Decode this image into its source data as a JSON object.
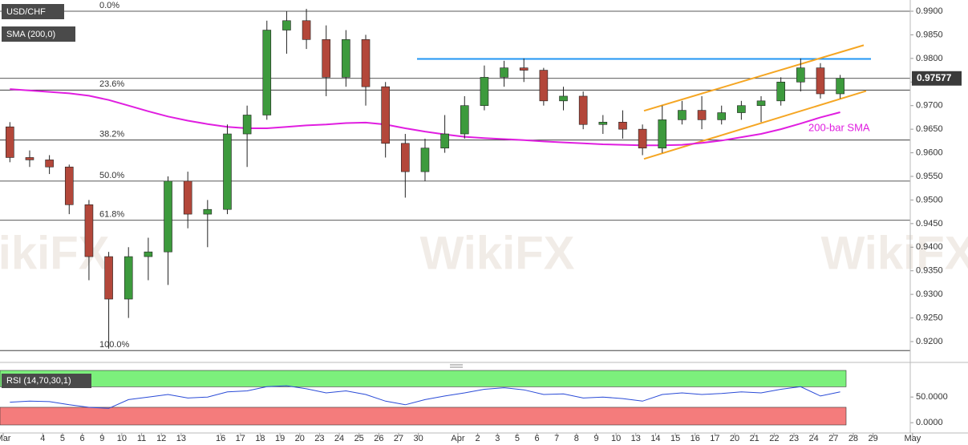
{
  "chart_data": {
    "type": "candlestick",
    "symbol": "USD/CHF",
    "indicator": "SMA (200,0)",
    "categories": [
      "Mar",
      null,
      "4",
      "5",
      "6",
      "9",
      "10",
      "11",
      "12",
      "13",
      null,
      "16",
      "17",
      "18",
      "19",
      "20",
      "23",
      "24",
      "25",
      "26",
      "27",
      "30",
      null,
      "Apr",
      "2",
      "3",
      "5",
      "6",
      "7",
      "8",
      "9",
      "10",
      "13",
      "14",
      "15",
      "16",
      "17",
      "20",
      "21",
      "22",
      "23",
      "24",
      "27",
      "28",
      "29",
      null,
      "May"
    ],
    "candles": [
      [
        0.9655,
        0.9665,
        0.958,
        0.959
      ],
      [
        0.959,
        0.9605,
        0.957,
        0.9585
      ],
      [
        0.9585,
        0.9595,
        0.9555,
        0.957
      ],
      [
        0.957,
        0.9575,
        0.947,
        0.949
      ],
      [
        0.949,
        0.95,
        0.933,
        0.938
      ],
      [
        0.938,
        0.939,
        0.9185,
        0.929
      ],
      [
        0.929,
        0.94,
        0.925,
        0.938
      ],
      [
        0.938,
        0.942,
        0.933,
        0.939
      ],
      [
        0.939,
        0.955,
        0.932,
        0.954
      ],
      [
        0.954,
        0.956,
        0.944,
        0.947
      ],
      [
        0.947,
        0.95,
        0.94,
        0.948
      ],
      [
        0.948,
        0.966,
        0.947,
        0.964
      ],
      [
        0.964,
        0.97,
        0.957,
        0.968
      ],
      [
        0.968,
        0.988,
        0.967,
        0.986
      ],
      [
        0.986,
        0.99,
        0.981,
        0.988
      ],
      [
        0.988,
        0.9905,
        0.982,
        0.984
      ],
      [
        0.984,
        0.987,
        0.972,
        0.976
      ],
      [
        0.976,
        0.986,
        0.974,
        0.984
      ],
      [
        0.984,
        0.985,
        0.97,
        0.974
      ],
      [
        0.974,
        0.975,
        0.959,
        0.962
      ],
      [
        0.962,
        0.964,
        0.9505,
        0.956
      ],
      [
        0.956,
        0.963,
        0.954,
        0.961
      ],
      [
        0.961,
        0.968,
        0.96,
        0.964
      ],
      [
        0.964,
        0.972,
        0.963,
        0.97
      ],
      [
        0.97,
        0.9785,
        0.969,
        0.976
      ],
      [
        0.976,
        0.9795,
        0.974,
        0.978
      ],
      [
        0.978,
        0.98,
        0.975,
        0.9775
      ],
      [
        0.9775,
        0.978,
        0.97,
        0.971
      ],
      [
        0.971,
        0.974,
        0.969,
        0.972
      ],
      [
        0.972,
        0.973,
        0.965,
        0.966
      ],
      [
        0.966,
        0.968,
        0.964,
        0.9665
      ],
      [
        0.9665,
        0.969,
        0.963,
        0.965
      ],
      [
        0.965,
        0.966,
        0.9595,
        0.961
      ],
      [
        0.961,
        0.97,
        0.96,
        0.967
      ],
      [
        0.967,
        0.971,
        0.966,
        0.969
      ],
      [
        0.969,
        0.972,
        0.965,
        0.967
      ],
      [
        0.967,
        0.97,
        0.966,
        0.9685
      ],
      [
        0.9685,
        0.971,
        0.967,
        0.97
      ],
      [
        0.97,
        0.972,
        0.9665,
        0.971
      ],
      [
        0.971,
        0.976,
        0.97,
        0.975
      ],
      [
        0.975,
        0.98,
        0.973,
        0.978
      ],
      [
        0.978,
        0.979,
        0.9715,
        0.9725
      ],
      [
        0.9725,
        0.9765,
        0.9715,
        0.9758
      ],
      null,
      null,
      null,
      null
    ],
    "up_color": "#3d9a3d",
    "down_color": "#b3473a",
    "sma": {
      "name": "200-bar SMA",
      "color": "#e01ee0",
      "values": [
        0.9735,
        0.9732,
        0.9729,
        0.9726,
        0.9721,
        0.9712,
        0.97,
        0.9688,
        0.9677,
        0.9668,
        0.9661,
        0.9655,
        0.9652,
        0.9652,
        0.9655,
        0.9658,
        0.966,
        0.9663,
        0.9664,
        0.966,
        0.9652,
        0.9645,
        0.9639,
        0.9634,
        0.9631,
        0.9629,
        0.9627,
        0.9624,
        0.9622,
        0.962,
        0.9618,
        0.9617,
        0.9616,
        0.9616,
        0.9617,
        0.9621,
        0.9626,
        0.9633,
        0.964,
        0.965,
        0.9662,
        0.9675,
        0.9686,
        null,
        null,
        null,
        null
      ]
    },
    "ylim": [
      0.91558,
      0.99238
    ],
    "yticks": [
      {
        "value": 0.99,
        "label": "0.9900"
      },
      {
        "value": 0.985,
        "label": "0.9850"
      },
      {
        "value": 0.98,
        "label": "0.9800"
      },
      {
        "value": 0.975,
        "label": "0.9750"
      },
      {
        "value": 0.97,
        "label": "0.9700"
      },
      {
        "value": 0.965,
        "label": "0.9650"
      },
      {
        "value": 0.96,
        "label": "0.9600"
      },
      {
        "value": 0.955,
        "label": "0.9550"
      },
      {
        "value": 0.95,
        "label": "0.9500"
      },
      {
        "value": 0.945,
        "label": "0.9450"
      },
      {
        "value": 0.94,
        "label": "0.9400"
      },
      {
        "value": 0.935,
        "label": "0.9350"
      },
      {
        "value": 0.93,
        "label": "0.9300"
      },
      {
        "value": 0.925,
        "label": "0.9250"
      },
      {
        "value": 0.92,
        "label": "0.9200"
      }
    ],
    "last_price": 0.97577,
    "fib_levels": [
      {
        "label": "0.0%",
        "value": 0.99
      },
      {
        "label": "23.6%",
        "value": 0.9733
      },
      {
        "label": "38.2%",
        "value": 0.9627
      },
      {
        "label": "50.0%",
        "value": 0.954
      },
      {
        "label": "61.8%",
        "value": 0.9457
      },
      {
        "label": "100.0%",
        "value": 0.9181
      }
    ],
    "resistance": {
      "value": 0.9799,
      "color": "#2196f3"
    },
    "channel": {
      "color": "#f5a623",
      "upper": [
        0.9689,
        0.9828
      ],
      "lower": [
        0.9587,
        0.9731
      ]
    },
    "watermark": "WikiFX",
    "indicator_panel": {
      "name": "RSI (14,70,30,1)",
      "color": "#2a4bd7",
      "bands": [
        30,
        70
      ],
      "ylim": [
        -20,
        108
      ],
      "yticks": [
        {
          "value": 50,
          "label": "50.0000"
        },
        {
          "value": 0,
          "label": "0.0000"
        }
      ],
      "values": [
        40,
        42,
        41,
        35,
        30,
        28,
        45,
        50,
        55,
        48,
        50,
        60,
        62,
        70,
        72,
        66,
        58,
        62,
        55,
        42,
        35,
        45,
        52,
        58,
        65,
        68,
        64,
        55,
        56,
        48,
        50,
        47,
        42,
        55,
        58,
        55,
        57,
        60,
        58,
        65,
        70,
        52,
        60,
        null,
        null,
        null,
        null
      ]
    }
  }
}
